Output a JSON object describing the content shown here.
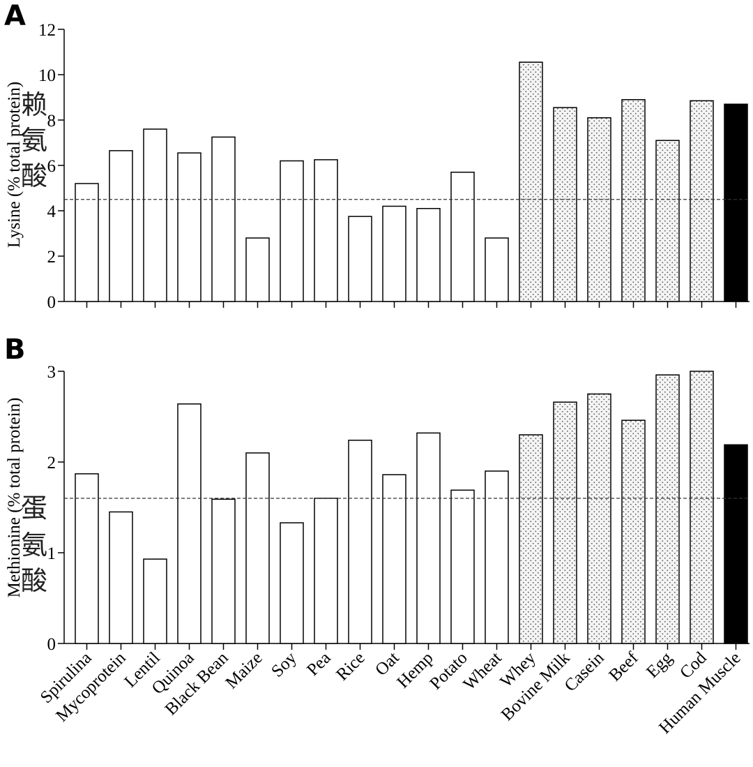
{
  "chart_data": [
    {
      "panel": "A",
      "type": "bar",
      "ylabel": "Lysine (% total protein)",
      "annotation_cn": [
        "赖",
        "氨",
        "酸"
      ],
      "ylim": [
        0,
        12
      ],
      "yticks": [
        0,
        2,
        4,
        6,
        8,
        10,
        12
      ],
      "reference_line": 4.5,
      "categories": [
        "Spirulina",
        "Mycoprotein",
        "Lentil",
        "Quinoa",
        "Black Bean",
        "Maize",
        "Soy",
        "Pea",
        "Rice",
        "Oat",
        "Hemp",
        "Potato",
        "Wheat",
        "Whey",
        "Bovine Milk",
        "Casein",
        "Beef",
        "Egg",
        "Cod",
        "Human Muscle"
      ],
      "values": [
        5.2,
        6.65,
        7.6,
        6.55,
        7.25,
        2.8,
        6.2,
        6.25,
        3.75,
        4.2,
        4.1,
        5.7,
        2.8,
        10.55,
        8.55,
        8.1,
        8.9,
        7.1,
        8.85,
        8.7
      ],
      "fill": [
        "plant",
        "plant",
        "plant",
        "plant",
        "plant",
        "plant",
        "plant",
        "plant",
        "plant",
        "plant",
        "plant",
        "plant",
        "plant",
        "animal",
        "animal",
        "animal",
        "animal",
        "animal",
        "animal",
        "human"
      ]
    },
    {
      "panel": "B",
      "type": "bar",
      "ylabel": "Methionine (% total protein)",
      "annotation_cn": [
        "蛋",
        "氨",
        "酸"
      ],
      "ylim": [
        0,
        3
      ],
      "yticks": [
        0,
        1,
        2,
        3
      ],
      "reference_line": 1.6,
      "categories": [
        "Spirulina",
        "Mycoprotein",
        "Lentil",
        "Quinoa",
        "Black Bean",
        "Maize",
        "Soy",
        "Pea",
        "Rice",
        "Oat",
        "Hemp",
        "Potato",
        "Wheat",
        "Whey",
        "Bovine Milk",
        "Casein",
        "Beef",
        "Egg",
        "Cod",
        "Human Muscle"
      ],
      "values": [
        1.87,
        1.45,
        0.93,
        2.64,
        1.59,
        2.1,
        1.33,
        1.6,
        2.24,
        1.86,
        2.32,
        1.69,
        1.9,
        2.3,
        2.66,
        2.75,
        2.46,
        2.96,
        3.0,
        2.19
      ],
      "fill": [
        "plant",
        "plant",
        "plant",
        "plant",
        "plant",
        "plant",
        "plant",
        "plant",
        "plant",
        "plant",
        "plant",
        "plant",
        "plant",
        "animal",
        "animal",
        "animal",
        "animal",
        "animal",
        "animal",
        "human"
      ]
    }
  ],
  "colors": {
    "plant": "#ffffff",
    "animal": "#f2f2f2",
    "human": "#000000",
    "stroke": "#000000",
    "dots": "#555555"
  }
}
